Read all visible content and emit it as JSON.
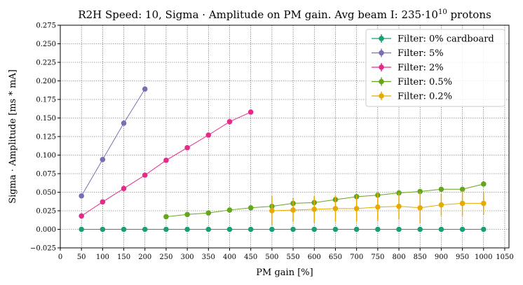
{
  "chart_data": {
    "type": "line",
    "title_main": "R2H Speed: 10, Sigma · Amplitude on PM gain. Avg beam I: 235·10",
    "title_sup": "10",
    "title_end": " protons",
    "xlabel": "PM gain [%]",
    "ylabel": "Sigma · Amplitude [ms * mA]",
    "xlim": [
      0,
      1060
    ],
    "ylim": [
      -0.025,
      0.275
    ],
    "xticks": [
      0,
      50,
      100,
      150,
      200,
      250,
      300,
      350,
      400,
      450,
      500,
      550,
      600,
      650,
      700,
      750,
      800,
      850,
      900,
      950,
      1000,
      1050
    ],
    "yticks": [
      -0.025,
      0.0,
      0.025,
      0.05,
      0.075,
      0.1,
      0.125,
      0.15,
      0.175,
      0.2,
      0.225,
      0.25,
      0.275
    ],
    "ytick_labels": [
      "−0.025",
      "0.000",
      "0.025",
      "0.050",
      "0.075",
      "0.100",
      "0.125",
      "0.150",
      "0.175",
      "0.200",
      "0.225",
      "0.250",
      "0.275"
    ],
    "grid": true,
    "legend_position": "top-right",
    "series": [
      {
        "name": "Filter: 0% cardboard",
        "color": "#1b9e77",
        "x": [
          50,
          100,
          150,
          200,
          250,
          300,
          350,
          400,
          450,
          500,
          550,
          600,
          650,
          700,
          750,
          800,
          850,
          900,
          950,
          1000
        ],
        "y": [
          0.0,
          0.0,
          0.0,
          0.0,
          0.0,
          0.0,
          0.0,
          0.0,
          0.0,
          0.0,
          0.0,
          0.0,
          0.0,
          0.0,
          0.0,
          0.0,
          0.0,
          0.0,
          0.0,
          0.0
        ],
        "err": [
          0.001,
          0.001,
          0.001,
          0.001,
          0.001,
          0.001,
          0.001,
          0.001,
          0.001,
          0.001,
          0.001,
          0.001,
          0.001,
          0.001,
          0.001,
          0.001,
          0.001,
          0.001,
          0.001,
          0.002
        ]
      },
      {
        "name": "Filter: 5%",
        "color": "#7570b3",
        "x": [
          50,
          100,
          150,
          200
        ],
        "y": [
          0.045,
          0.094,
          0.143,
          0.189
        ],
        "err": [
          0.002,
          0.002,
          0.002,
          0.003
        ]
      },
      {
        "name": "Filter: 2%",
        "color": "#e7298a",
        "x": [
          50,
          100,
          150,
          200,
          250,
          300,
          350,
          400,
          450
        ],
        "y": [
          0.018,
          0.037,
          0.055,
          0.073,
          0.093,
          0.11,
          0.127,
          0.145,
          0.158
        ],
        "err": [
          0.001,
          0.001,
          0.001,
          0.001,
          0.001,
          0.001,
          0.001,
          0.002,
          0.003
        ]
      },
      {
        "name": "Filter: 0.5%",
        "color": "#66a61e",
        "x": [
          250,
          300,
          350,
          400,
          450,
          500,
          550,
          600,
          650,
          700,
          750,
          800,
          850,
          900,
          950,
          1000
        ],
        "y": [
          0.017,
          0.02,
          0.022,
          0.026,
          0.029,
          0.031,
          0.035,
          0.036,
          0.04,
          0.044,
          0.046,
          0.049,
          0.051,
          0.054,
          0.054,
          0.061
        ],
        "err": [
          0.001,
          0.001,
          0.001,
          0.001,
          0.001,
          0.002,
          0.002,
          0.002,
          0.002,
          0.002,
          0.002,
          0.002,
          0.002,
          0.002,
          0.002,
          0.003
        ]
      },
      {
        "name": "Filter: 0.2%",
        "color": "#e6ab02",
        "x": [
          500,
          550,
          600,
          650,
          700,
          750,
          800,
          850,
          900,
          950,
          1000
        ],
        "y": [
          0.025,
          0.026,
          0.027,
          0.028,
          0.028,
          0.03,
          0.031,
          0.029,
          0.033,
          0.035,
          0.035
        ],
        "err": [
          0.02,
          0.016,
          0.018,
          0.018,
          0.018,
          0.019,
          0.018,
          0.021,
          0.015,
          0.017,
          0.015
        ]
      }
    ]
  }
}
